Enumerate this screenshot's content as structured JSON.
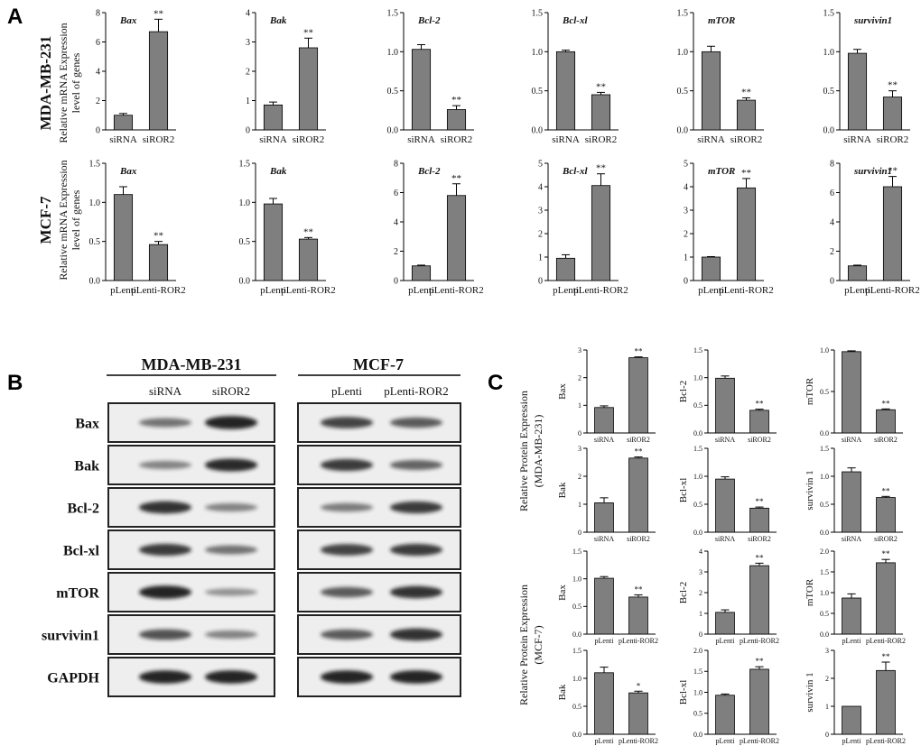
{
  "panels": {
    "A": "A",
    "B": "B",
    "C": "C"
  },
  "colors": {
    "bar": "#7f7f7f",
    "axis": "#000000",
    "band": "#1a1a1a",
    "membrane": "#eeeeee"
  },
  "panelA": {
    "row_labels": [
      "MDA-MB-231",
      "MCF-7"
    ],
    "ylabel_line1": "Relative mRNA Expression",
    "ylabel_line2": "level of genes"
  },
  "chart_data": [
    {
      "panel": "A",
      "row": 0,
      "type": "bar",
      "title": "Bax",
      "categories": [
        "siRNA",
        "siROR2"
      ],
      "values": [
        1.0,
        6.7
      ],
      "errors": [
        0.12,
        0.85
      ],
      "annotations": [
        "",
        "**"
      ],
      "ylim": [
        0,
        8
      ],
      "yticks": [
        0,
        2,
        4,
        6,
        8
      ]
    },
    {
      "panel": "A",
      "row": 0,
      "type": "bar",
      "title": "Bak",
      "categories": [
        "siRNA",
        "siROR2"
      ],
      "values": [
        0.85,
        2.8
      ],
      "errors": [
        0.1,
        0.33
      ],
      "annotations": [
        "",
        "**"
      ],
      "ylim": [
        0,
        4
      ],
      "yticks": [
        0,
        1,
        2,
        3,
        4
      ]
    },
    {
      "panel": "A",
      "row": 0,
      "type": "bar",
      "title": "Bcl-2",
      "categories": [
        "siRNA",
        "siROR2"
      ],
      "values": [
        1.03,
        0.26
      ],
      "errors": [
        0.06,
        0.05
      ],
      "annotations": [
        "",
        "**"
      ],
      "ylim": [
        0,
        1.5
      ],
      "yticks": [
        "0.0",
        "0.5",
        "1.0",
        "1.5"
      ]
    },
    {
      "panel": "A",
      "row": 0,
      "type": "bar",
      "title": "Bcl-xl",
      "categories": [
        "siRNA",
        "siROR2"
      ],
      "values": [
        1.0,
        0.45
      ],
      "errors": [
        0.02,
        0.03
      ],
      "annotations": [
        "",
        "**"
      ],
      "ylim": [
        0,
        1.5
      ],
      "yticks": [
        "0.0",
        "0.5",
        "1.0",
        "1.5"
      ]
    },
    {
      "panel": "A",
      "row": 0,
      "type": "bar",
      "title": "mTOR",
      "categories": [
        "siRNA",
        "siROR2"
      ],
      "values": [
        1.0,
        0.38
      ],
      "errors": [
        0.07,
        0.03
      ],
      "annotations": [
        "",
        "**"
      ],
      "ylim": [
        0,
        1.5
      ],
      "yticks": [
        "0.0",
        "0.5",
        "1.0",
        "1.5"
      ]
    },
    {
      "panel": "A",
      "row": 0,
      "type": "bar",
      "title": "survivin1",
      "categories": [
        "siRNA",
        "siROR2"
      ],
      "values": [
        0.98,
        0.42
      ],
      "errors": [
        0.05,
        0.08
      ],
      "annotations": [
        "",
        "**"
      ],
      "ylim": [
        0,
        1.5
      ],
      "yticks": [
        "0.0",
        "0.5",
        "1.0",
        "1.5"
      ]
    },
    {
      "panel": "A",
      "row": 1,
      "type": "bar",
      "title": "Bax",
      "categories": [
        "pLenti",
        "pLenti-ROR2"
      ],
      "values": [
        1.1,
        0.46
      ],
      "errors": [
        0.1,
        0.04
      ],
      "annotations": [
        "",
        "**"
      ],
      "ylim": [
        0,
        1.5
      ],
      "yticks": [
        "0.0",
        "0.5",
        "1.0",
        "1.5"
      ]
    },
    {
      "panel": "A",
      "row": 1,
      "type": "bar",
      "title": "Bak",
      "categories": [
        "pLenti",
        "pLenti-ROR2"
      ],
      "values": [
        0.98,
        0.53
      ],
      "errors": [
        0.07,
        0.02
      ],
      "annotations": [
        "",
        "**"
      ],
      "ylim": [
        0,
        1.5
      ],
      "yticks": [
        "0.0",
        "0.5",
        "1.0",
        "1.5"
      ]
    },
    {
      "panel": "A",
      "row": 1,
      "type": "bar",
      "title": "Bcl-2",
      "categories": [
        "pLenti",
        "pLenti-ROR2"
      ],
      "values": [
        1.0,
        5.8
      ],
      "errors": [
        0.05,
        0.8
      ],
      "annotations": [
        "",
        "**"
      ],
      "ylim": [
        0,
        8
      ],
      "yticks": [
        0,
        2,
        4,
        6,
        8
      ]
    },
    {
      "panel": "A",
      "row": 1,
      "type": "bar",
      "title": "Bcl-xl",
      "categories": [
        "pLenti",
        "pLenti-ROR2"
      ],
      "values": [
        0.95,
        4.05
      ],
      "errors": [
        0.15,
        0.5
      ],
      "annotations": [
        "",
        "**"
      ],
      "ylim": [
        0,
        5
      ],
      "yticks": [
        0,
        1,
        2,
        3,
        4,
        5
      ]
    },
    {
      "panel": "A",
      "row": 1,
      "type": "bar",
      "title": "mTOR",
      "categories": [
        "pLenti",
        "pLenti-ROR2"
      ],
      "values": [
        1.0,
        3.95
      ],
      "errors": [
        0.02,
        0.4
      ],
      "annotations": [
        "",
        "**"
      ],
      "ylim": [
        0,
        5
      ],
      "yticks": [
        0,
        1,
        2,
        3,
        4,
        5
      ]
    },
    {
      "panel": "A",
      "row": 1,
      "type": "bar",
      "title": "survivin1",
      "categories": [
        "pLenti",
        "pLenti-ROR2"
      ],
      "values": [
        1.0,
        6.4
      ],
      "errors": [
        0.05,
        0.7
      ],
      "annotations": [
        "",
        "**"
      ],
      "ylim": [
        0,
        8
      ],
      "yticks": [
        0,
        2,
        4,
        6,
        8
      ]
    },
    {
      "panel": "C",
      "row": 0,
      "type": "bar",
      "title": "Bax",
      "categories": [
        "siRNA",
        "siROR2"
      ],
      "values": [
        0.92,
        2.72
      ],
      "errors": [
        0.06,
        0.03
      ],
      "annotations": [
        "",
        "**"
      ],
      "ylim": [
        0,
        3
      ],
      "yticks": [
        0,
        1,
        2,
        3
      ]
    },
    {
      "panel": "C",
      "row": 0,
      "type": "bar",
      "title": "Bcl-2",
      "categories": [
        "siRNA",
        "siROR2"
      ],
      "values": [
        0.99,
        0.41
      ],
      "errors": [
        0.04,
        0.02
      ],
      "annotations": [
        "",
        "**"
      ],
      "ylim": [
        0,
        1.5
      ],
      "yticks": [
        "0.0",
        "0.5",
        "1.0",
        "1.5"
      ]
    },
    {
      "panel": "C",
      "row": 0,
      "type": "bar",
      "title": "mTOR",
      "categories": [
        "siRNA",
        "siROR2"
      ],
      "values": [
        0.98,
        0.28
      ],
      "errors": [
        0.01,
        0.01
      ],
      "annotations": [
        "",
        "**"
      ],
      "ylim": [
        0,
        1.0
      ],
      "yticks": [
        "0.0",
        "0.5",
        "1.0"
      ]
    },
    {
      "panel": "C",
      "row": 1,
      "type": "bar",
      "title": "Bak",
      "categories": [
        "siRNA",
        "siROR2"
      ],
      "values": [
        1.05,
        2.65
      ],
      "errors": [
        0.18,
        0.04
      ],
      "annotations": [
        "",
        "**"
      ],
      "ylim": [
        0,
        3
      ],
      "yticks": [
        0,
        1,
        2,
        3
      ]
    },
    {
      "panel": "C",
      "row": 1,
      "type": "bar",
      "title": "Bcl-xl",
      "categories": [
        "siRNA",
        "siROR2"
      ],
      "values": [
        0.95,
        0.43
      ],
      "errors": [
        0.04,
        0.02
      ],
      "annotations": [
        "",
        "**"
      ],
      "ylim": [
        0,
        1.5
      ],
      "yticks": [
        "0.0",
        "0.5",
        "1.0",
        "1.5"
      ]
    },
    {
      "panel": "C",
      "row": 1,
      "type": "bar",
      "title": "survivin 1",
      "categories": [
        "siRNA",
        "siROR2"
      ],
      "values": [
        1.08,
        0.62
      ],
      "errors": [
        0.07,
        0.02
      ],
      "annotations": [
        "",
        "**"
      ],
      "ylim": [
        0,
        1.5
      ],
      "yticks": [
        "0.0",
        "0.5",
        "1.0",
        "1.5"
      ]
    },
    {
      "panel": "C",
      "row": 2,
      "type": "bar",
      "title": "Bax",
      "categories": [
        "pLenti",
        "pLenti-ROR2"
      ],
      "values": [
        1.01,
        0.67
      ],
      "errors": [
        0.03,
        0.04
      ],
      "annotations": [
        "",
        "**"
      ],
      "ylim": [
        0,
        1.5
      ],
      "yticks": [
        "0.0",
        "0.5",
        "1.0",
        "1.5"
      ]
    },
    {
      "panel": "C",
      "row": 2,
      "type": "bar",
      "title": "Bcl-2",
      "categories": [
        "pLenti",
        "pLenti-ROR2"
      ],
      "values": [
        1.05,
        3.3
      ],
      "errors": [
        0.12,
        0.12
      ],
      "annotations": [
        "",
        "**"
      ],
      "ylim": [
        0,
        4
      ],
      "yticks": [
        0,
        1,
        2,
        3,
        4
      ]
    },
    {
      "panel": "C",
      "row": 2,
      "type": "bar",
      "title": "mTOR",
      "categories": [
        "pLenti",
        "pLenti-ROR2"
      ],
      "values": [
        0.87,
        1.72
      ],
      "errors": [
        0.1,
        0.08
      ],
      "annotations": [
        "",
        "**"
      ],
      "ylim": [
        0,
        2.0
      ],
      "yticks": [
        "0.0",
        "0.5",
        "1.0",
        "1.5",
        "2.0"
      ]
    },
    {
      "panel": "C",
      "row": 3,
      "type": "bar",
      "title": "Bak",
      "categories": [
        "pLenti",
        "pLenti-ROR2"
      ],
      "values": [
        1.1,
        0.74
      ],
      "errors": [
        0.1,
        0.03
      ],
      "annotations": [
        "",
        "*"
      ],
      "ylim": [
        0,
        1.5
      ],
      "yticks": [
        "0.0",
        "0.5",
        "1.0",
        "1.5"
      ]
    },
    {
      "panel": "C",
      "row": 3,
      "type": "bar",
      "title": "Bcl-xl",
      "categories": [
        "pLenti",
        "pLenti-ROR2"
      ],
      "values": [
        0.93,
        1.55
      ],
      "errors": [
        0.03,
        0.06
      ],
      "annotations": [
        "",
        "**"
      ],
      "ylim": [
        0,
        2.0
      ],
      "yticks": [
        "0.0",
        "0.5",
        "1.0",
        "1.5",
        "2.0"
      ]
    },
    {
      "panel": "C",
      "row": 3,
      "type": "bar",
      "title": "survivin 1",
      "categories": [
        "pLenti",
        "pLenti-ROR2"
      ],
      "values": [
        1.0,
        2.28
      ],
      "errors": [
        0.0,
        0.3
      ],
      "annotations": [
        "",
        "**"
      ],
      "ylim": [
        0,
        3
      ],
      "yticks": [
        0,
        1,
        2,
        3
      ]
    }
  ],
  "panelB": {
    "cell_lines": [
      "MDA-MB-231",
      "MCF-7"
    ],
    "lanes": [
      [
        "siRNA",
        "siROR2"
      ],
      [
        "pLenti",
        "pLenti-ROR2"
      ]
    ],
    "proteins": [
      "Bax",
      "Bak",
      "Bcl-2",
      "Bcl-xl",
      "mTOR",
      "survivin1",
      "GAPDH"
    ],
    "band_intensity": [
      [
        [
          0.45,
          0.95
        ],
        [
          0.75,
          0.6
        ]
      ],
      [
        [
          0.35,
          0.9
        ],
        [
          0.8,
          0.55
        ]
      ],
      [
        [
          0.85,
          0.35
        ],
        [
          0.4,
          0.8
        ]
      ],
      [
        [
          0.8,
          0.45
        ],
        [
          0.75,
          0.8
        ]
      ],
      [
        [
          0.95,
          0.25
        ],
        [
          0.6,
          0.85
        ]
      ],
      [
        [
          0.65,
          0.35
        ],
        [
          0.6,
          0.85
        ]
      ],
      [
        [
          0.95,
          0.95
        ],
        [
          0.95,
          0.95
        ]
      ]
    ]
  },
  "panelC": {
    "ylabel_top": [
      "Relative Protein Expression",
      "(MDA-MB-231)"
    ],
    "ylabel_bottom": [
      "Relative Protein Expression",
      "(MCF-7)"
    ]
  }
}
